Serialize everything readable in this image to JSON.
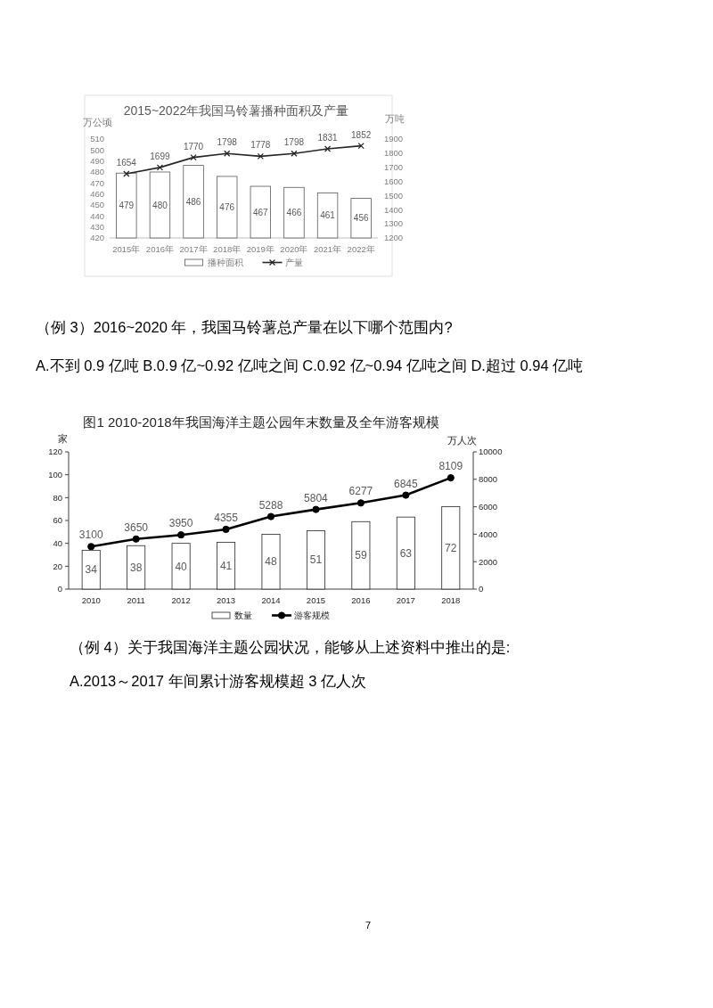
{
  "chart_data": [
    {
      "type": "bar",
      "title": "2015~2022年我国马铃薯播种面积及产量",
      "ylabel": "万公顷",
      "y2label": "万吨",
      "categories": [
        "2015年",
        "2016年",
        "2017年",
        "2018年",
        "2019年",
        "2020年",
        "2021年",
        "2022年"
      ],
      "series": [
        {
          "name": "播种面积",
          "color": "#ffffff",
          "values": [
            479,
            480,
            486,
            476,
            467,
            466,
            461,
            456
          ]
        },
        {
          "name": "产量",
          "type": "line",
          "axis": "y2",
          "color": "#262626",
          "marker": "cross",
          "values": [
            1654,
            1699,
            1770,
            1798,
            1778,
            1798,
            1831,
            1852
          ]
        }
      ],
      "ylim": [
        420,
        510
      ],
      "yticks": [
        420,
        430,
        440,
        450,
        460,
        470,
        480,
        490,
        500,
        510
      ],
      "y2lim": [
        1200,
        1900
      ],
      "y2ticks": [
        1200,
        1300,
        1400,
        1500,
        1600,
        1700,
        1800,
        1900
      ],
      "data_labels": true,
      "legend": "bottom",
      "annotations": [
        "（例 3）2016~2020 年，我国马铃薯总产量在以下哪个范围内?",
        "A.不到 0.9 亿吨 B.0.9 亿~0.92 亿吨之间 C.0.92 亿~0.94 亿吨之间 D.超过 0.94 亿吨"
      ]
    },
    {
      "type": "bar",
      "title": "图1 2010-2018年我国海洋主题公园年末数量及全年游客规模",
      "ylabel": "家",
      "y2label": "万人次",
      "categories": [
        "2010",
        "2011",
        "2012",
        "2013",
        "2014",
        "2015",
        "2016",
        "2017",
        "2018"
      ],
      "series": [
        {
          "name": "数量",
          "color": "#ffffff",
          "values": [
            34,
            38,
            40,
            41,
            48,
            51,
            59,
            63,
            72
          ]
        },
        {
          "name": "游客规模",
          "type": "line",
          "axis": "y2",
          "color": "#000000",
          "marker": "circle",
          "values": [
            3100,
            3650,
            3950,
            4355,
            5288,
            5804,
            6277,
            6845,
            8109
          ]
        }
      ],
      "ylim": [
        0,
        120
      ],
      "yticks": [
        0,
        20,
        40,
        60,
        80,
        100,
        120
      ],
      "y2lim": [
        0,
        10000
      ],
      "y2ticks": [
        0,
        2000,
        4000,
        6000,
        8000,
        10000
      ],
      "data_labels": true,
      "legend": "bottom",
      "annotations": [
        "（例 4）关于我国海洋主题公园状况，能够从上述资料中推出的是:",
        "A.2013～2017 年间累计游客规模超 3 亿人次",
        "7"
      ]
    }
  ]
}
